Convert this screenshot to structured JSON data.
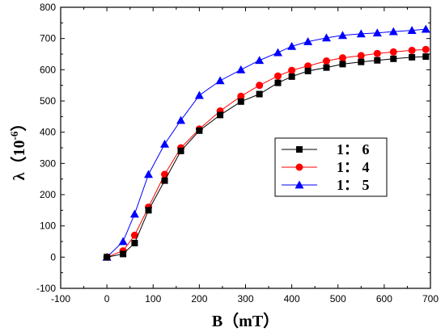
{
  "chart_data": {
    "type": "line",
    "xlabel": "B（mT）",
    "ylabel_main": "λ（",
    "ylabel_base": "10",
    "ylabel_exp": "-6",
    "ylabel_close": "）",
    "xlim": [
      -100,
      700
    ],
    "ylim": [
      -100,
      800
    ],
    "xticks": [
      -100,
      0,
      100,
      200,
      300,
      400,
      500,
      600,
      700
    ],
    "yticks": [
      -100,
      0,
      100,
      200,
      300,
      400,
      500,
      600,
      700,
      800
    ],
    "xtick_labels": [
      "-100",
      "0",
      "100",
      "200",
      "300",
      "400",
      "500",
      "600",
      "700"
    ],
    "ytick_labels": [
      "-100",
      "0",
      "100",
      "200",
      "300",
      "400",
      "500",
      "600",
      "700",
      "800"
    ],
    "grid": false,
    "legend_position": "center-right",
    "series": [
      {
        "name": "1： 6",
        "color": "#000000",
        "marker": "square",
        "x": [
          0,
          35,
          60,
          90,
          125,
          160,
          200,
          245,
          290,
          330,
          370,
          400,
          435,
          475,
          510,
          550,
          585,
          620,
          660,
          690
        ],
        "y": [
          0,
          10,
          45,
          150,
          245,
          340,
          405,
          455,
          498,
          522,
          558,
          578,
          596,
          607,
          618,
          625,
          630,
          635,
          640,
          642
        ]
      },
      {
        "name": "1： 4",
        "color": "#ff0000",
        "marker": "circle",
        "x": [
          0,
          35,
          60,
          90,
          125,
          160,
          200,
          245,
          290,
          330,
          370,
          400,
          435,
          475,
          510,
          550,
          585,
          620,
          660,
          690
        ],
        "y": [
          0,
          20,
          70,
          160,
          265,
          350,
          410,
          468,
          515,
          550,
          580,
          598,
          612,
          628,
          638,
          645,
          652,
          657,
          662,
          665
        ]
      },
      {
        "name": "1： 5",
        "color": "#0000ff",
        "marker": "triangle",
        "x": [
          0,
          35,
          60,
          90,
          125,
          160,
          200,
          245,
          290,
          330,
          370,
          400,
          435,
          475,
          510,
          550,
          585,
          620,
          660,
          690
        ],
        "y": [
          0,
          50,
          138,
          265,
          362,
          438,
          518,
          565,
          600,
          630,
          655,
          675,
          690,
          702,
          710,
          715,
          718,
          722,
          726,
          730
        ]
      }
    ]
  }
}
